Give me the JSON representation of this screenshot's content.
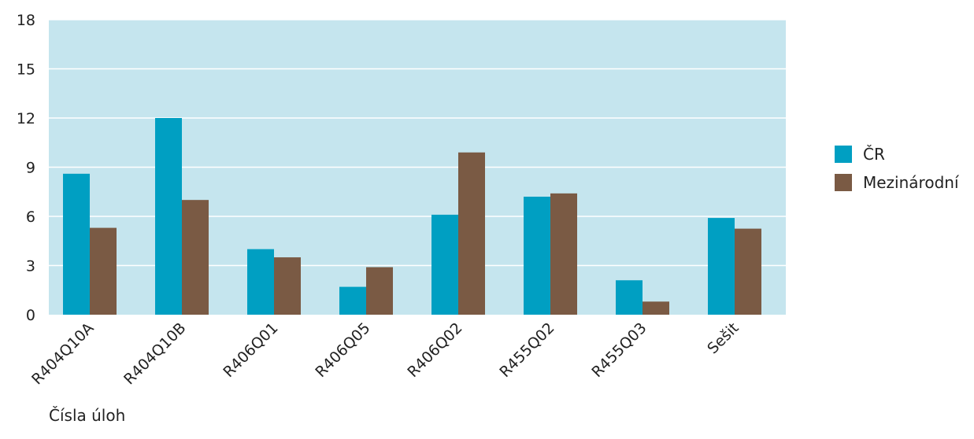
{
  "chart_data": {
    "type": "bar",
    "categories": [
      "R404Q10A",
      "R404Q10B",
      "R406Q01",
      "R406Q05",
      "R406Q02",
      "R455Q02",
      "R455Q03",
      "Sešit"
    ],
    "series": [
      {
        "name": "ČR",
        "color": "#009fc2",
        "values": [
          8.6,
          12.0,
          4.0,
          1.7,
          6.1,
          7.2,
          2.1,
          5.9
        ]
      },
      {
        "name": "Mezinárodní",
        "color": "#7a5a44",
        "values": [
          5.3,
          7.0,
          3.5,
          2.9,
          9.9,
          7.4,
          0.8,
          5.25
        ]
      }
    ],
    "xlabel": "Čísla úloh",
    "ylabel": "",
    "ylim": [
      0,
      18
    ],
    "yticks": [
      0,
      3,
      6,
      9,
      12,
      15,
      18
    ],
    "grid": true,
    "plot_background": "#c5e5ee",
    "legend_position": "right"
  }
}
